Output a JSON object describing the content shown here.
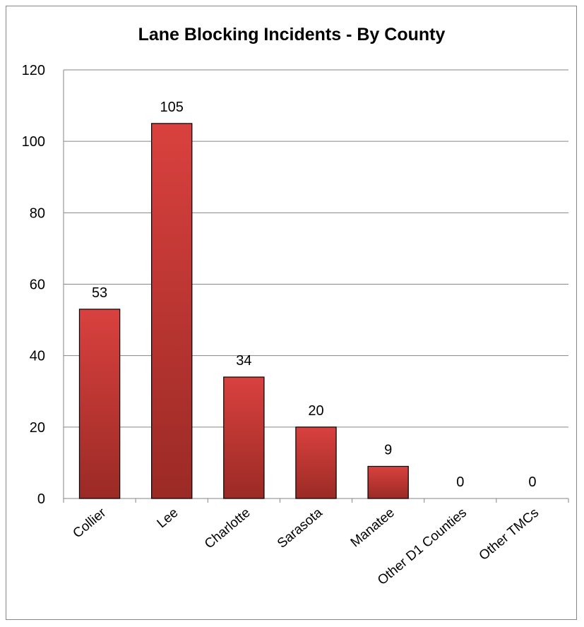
{
  "chart_data": {
    "type": "bar",
    "title": "Lane Blocking Incidents - By County",
    "xlabel": "",
    "ylabel": "",
    "categories": [
      "Collier",
      "Lee",
      "Charlotte",
      "Sarasota",
      "Manatee",
      "Other D1 Counties",
      "Other TMCs"
    ],
    "values": [
      53,
      105,
      34,
      20,
      9,
      0,
      0
    ],
    "ylim": [
      0,
      120
    ],
    "yticks": [
      0,
      20,
      40,
      60,
      80,
      100,
      120
    ],
    "grid": true,
    "legend": "none",
    "bar_color": "#c0392b",
    "bar_color_light": "#d9413e",
    "bar_color_dark": "#9b2a25"
  }
}
